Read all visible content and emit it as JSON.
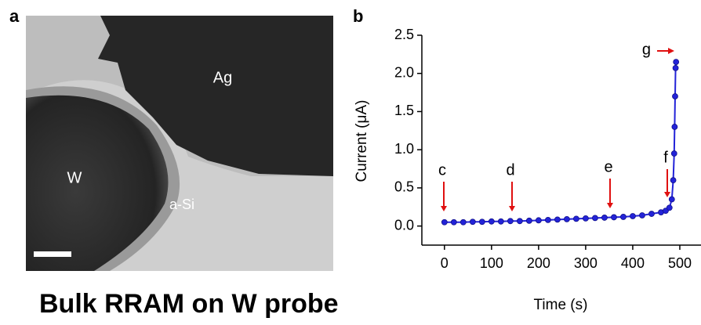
{
  "panel_a": {
    "label": "a",
    "image_labels": [
      "Ag",
      "W",
      "a-Si"
    ]
  },
  "panel_b": {
    "label": "b",
    "annotations": [
      "c",
      "d",
      "e",
      "f",
      "g"
    ]
  },
  "chart_data": {
    "type": "line",
    "x_label": "Time (s)",
    "y_label": "Current (μA)",
    "color": "#2323d8",
    "x": [
      0,
      20,
      40,
      60,
      80,
      100,
      120,
      140,
      160,
      180,
      200,
      220,
      240,
      260,
      280,
      300,
      320,
      340,
      360,
      380,
      400,
      420,
      440,
      460,
      470,
      478,
      483,
      486,
      488,
      489,
      490,
      491,
      492
    ],
    "values": [
      0.05,
      0.05,
      0.05,
      0.055,
      0.055,
      0.06,
      0.06,
      0.065,
      0.065,
      0.07,
      0.075,
      0.08,
      0.085,
      0.09,
      0.095,
      0.1,
      0.105,
      0.11,
      0.115,
      0.12,
      0.13,
      0.14,
      0.16,
      0.18,
      0.2,
      0.24,
      0.35,
      0.6,
      0.95,
      1.3,
      1.7,
      2.07,
      2.15
    ],
    "xlim": [
      -48,
      545
    ],
    "ylim": [
      -0.25,
      2.5
    ],
    "xticks": [
      0,
      100,
      200,
      300,
      400,
      500
    ],
    "yticks": [
      {
        "value": 0,
        "label": "0.0"
      },
      0.5,
      {
        "value": 1,
        "label": "1.0"
      },
      1.5,
      {
        "value": 2,
        "label": "2.0"
      },
      2.5
    ]
  },
  "caption": "Bulk RRAM on W probe"
}
